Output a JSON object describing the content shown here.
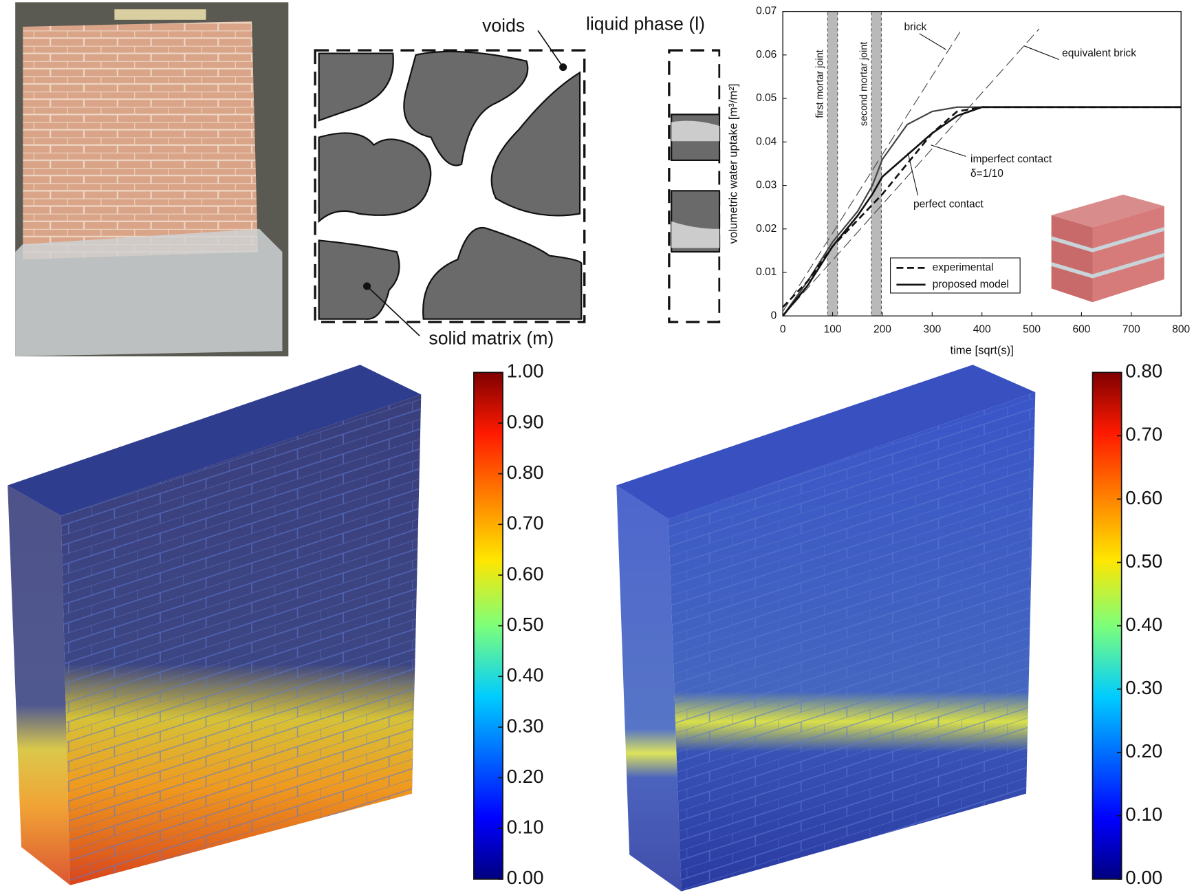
{
  "chart_data": [
    {
      "type": "line",
      "xlabel": "time [sqrt(s)]",
      "ylabel": "volumetric water uptake [m³/m²]",
      "xlim": [
        0,
        800
      ],
      "xticks": [
        0,
        100,
        200,
        300,
        400,
        500,
        600,
        700,
        800
      ],
      "ylim": [
        0,
        0.07
      ],
      "yticks": [
        0,
        0.01,
        0.02,
        0.03,
        0.04,
        0.05,
        0.06,
        0.07
      ],
      "series": [
        {
          "name": "experimental",
          "color": "#111111",
          "dash": "dashed",
          "x": [
            0,
            50,
            100,
            150,
            200,
            250,
            300,
            350,
            400,
            450,
            500,
            800
          ],
          "values": [
            0.002,
            0.008,
            0.016,
            0.022,
            0.028,
            0.035,
            0.042,
            0.047,
            0.048,
            0.048,
            0.048,
            0.048
          ]
        },
        {
          "name": "proposed model",
          "color": "#111111",
          "dash": "solid",
          "x": [
            0,
            50,
            100,
            150,
            180,
            200,
            250,
            300,
            350,
            400,
            500,
            800
          ],
          "values": [
            0,
            0.007,
            0.016,
            0.023,
            0.028,
            0.032,
            0.037,
            0.042,
            0.046,
            0.048,
            0.048,
            0.048
          ]
        }
      ],
      "annotated_curves": [
        {
          "label": "perfect contact",
          "color": "#444444",
          "x": [
            0,
            50,
            100,
            150,
            180,
            200,
            250,
            300,
            350,
            400,
            800
          ],
          "values": [
            0,
            0.008,
            0.017,
            0.024,
            0.03,
            0.036,
            0.044,
            0.047,
            0.048,
            0.048,
            0.048
          ]
        },
        {
          "label": "brick",
          "color": "#444444",
          "x": [
            0,
            360
          ],
          "values": [
            0.001,
            0.066
          ]
        },
        {
          "label": "equivalent brick",
          "color": "#444444",
          "x": [
            0,
            515
          ],
          "values": [
            0,
            0.066
          ]
        }
      ],
      "annotations": [
        "imperfect contact",
        "δ=1/10"
      ],
      "bands": [
        {
          "label": "first mortar joint",
          "range": [
            90,
            110
          ]
        },
        {
          "label": "second mortar joint",
          "range": [
            178,
            198
          ]
        }
      ]
    },
    {
      "type": "colorbar",
      "colormap": "jet",
      "ylim": [
        0,
        1
      ],
      "yticks": [
        {
          "value": 0,
          "label": "0.00"
        },
        {
          "value": 0.1,
          "label": "0.10"
        },
        {
          "value": 0.2,
          "label": "0.20"
        },
        {
          "value": 0.3,
          "label": "0.30"
        },
        {
          "value": 0.4,
          "label": "0.40"
        },
        {
          "value": 0.5,
          "label": "0.50"
        },
        {
          "value": 0.6,
          "label": "0.60"
        },
        {
          "value": 0.7,
          "label": "0.70"
        },
        {
          "value": 0.8,
          "label": "0.80"
        },
        {
          "value": 0.9,
          "label": "0.90"
        },
        {
          "value": 1,
          "label": "1.00"
        }
      ]
    },
    {
      "type": "colorbar",
      "colormap": "jet",
      "ylim": [
        0,
        0.8
      ],
      "yticks": [
        {
          "value": 0,
          "label": "0.00"
        },
        {
          "value": 0.1,
          "label": "0.10"
        },
        {
          "value": 0.2,
          "label": "0.20"
        },
        {
          "value": 0.3,
          "label": "0.30"
        },
        {
          "value": 0.4,
          "label": "0.40"
        },
        {
          "value": 0.5,
          "label": "0.50"
        },
        {
          "value": 0.6,
          "label": "0.60"
        },
        {
          "value": 0.7,
          "label": "0.70"
        },
        {
          "value": 0.8,
          "label": "0.80"
        }
      ]
    }
  ],
  "diagram": {
    "voids": "voids",
    "liquid_phase": "liquid phase (l)",
    "solid_matrix": "solid matrix (m)"
  }
}
